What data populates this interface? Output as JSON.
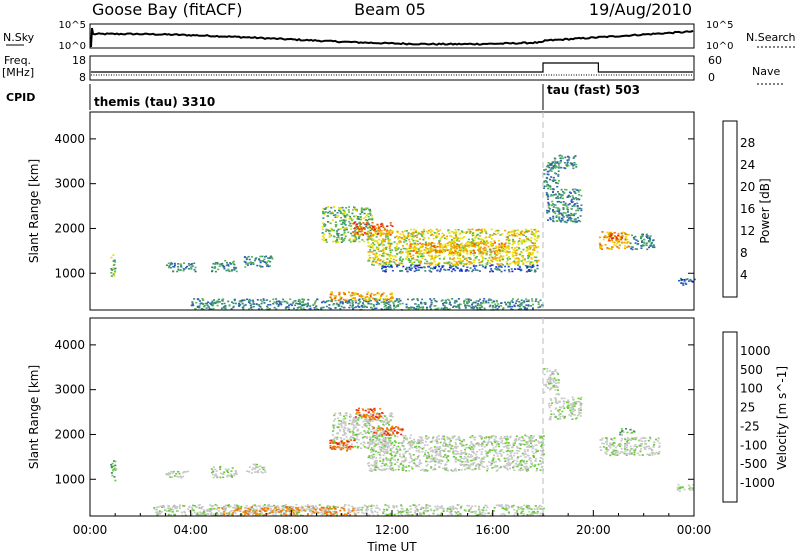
{
  "header": {
    "station": "Goose Bay (fitACF)",
    "beam": "Beam 05",
    "date": "19/Aug/2010"
  },
  "top_panels": {
    "nsky_label": "N.Sky",
    "nsky_ticks": [
      "10^5",
      "10^0"
    ],
    "nsearch_label": "N.Search",
    "nsearch_ticks": [
      "10^5",
      "10^0"
    ],
    "freq_label_1": "Freq.",
    "freq_label_2": "[MHz]",
    "freq_ticks": [
      "18",
      "8"
    ],
    "nave_label": "Nave",
    "nave_ticks": [
      "60",
      "0"
    ],
    "cpid_label": "CPID",
    "cpid_segments": [
      {
        "label": "themis (tau) 3310",
        "start_hour": 0,
        "end_hour": 18
      },
      {
        "label": "tau (fast) 503",
        "start_hour": 18,
        "end_hour": 24
      }
    ]
  },
  "chart_data": [
    {
      "type": "heatmap",
      "name": "power-panel",
      "ylabel": "Slant Range [km]",
      "ylim": [
        180,
        4600
      ],
      "yticks": [
        1000,
        2000,
        3000,
        4000
      ],
      "colorbar_label": "Power [dB]",
      "colorbar_ticks": [
        "28",
        "24",
        "20",
        "16",
        "12",
        "8",
        "4"
      ],
      "colorscale": [
        "#1a1aee",
        "#2e5cb8",
        "#3a8a78",
        "#58b858",
        "#e6e000",
        "#f0a000",
        "#ee6000",
        "#e02020"
      ],
      "regions": [
        {
          "t0": 0.8,
          "t1": 1.0,
          "r0": 950,
          "r1": 1450,
          "level": 3
        },
        {
          "t0": 3.0,
          "t1": 4.2,
          "r0": 1050,
          "r1": 1250,
          "level": 2
        },
        {
          "t0": 4.8,
          "t1": 5.8,
          "r0": 1050,
          "r1": 1300,
          "level": 2
        },
        {
          "t0": 6.1,
          "t1": 7.3,
          "r0": 1150,
          "r1": 1400,
          "level": 2
        },
        {
          "t0": 9.2,
          "t1": 11.2,
          "r0": 1700,
          "r1": 2500,
          "level": 3
        },
        {
          "t0": 10.4,
          "t1": 12.0,
          "r0": 1850,
          "r1": 2150,
          "level": 6
        },
        {
          "t0": 11.0,
          "t1": 17.8,
          "r0": 1200,
          "r1": 2000,
          "level": 4
        },
        {
          "t0": 12.5,
          "t1": 16.5,
          "r0": 1450,
          "r1": 1700,
          "level": 5
        },
        {
          "t0": 11.5,
          "t1": 17.8,
          "r0": 1050,
          "r1": 1200,
          "level": 1
        },
        {
          "t0": 4.0,
          "t1": 18.0,
          "r0": 200,
          "r1": 450,
          "level": 2
        },
        {
          "t0": 9.5,
          "t1": 12.0,
          "r0": 400,
          "r1": 600,
          "level": 5
        },
        {
          "t0": 18.0,
          "t1": 18.6,
          "r0": 2900,
          "r1": 3500,
          "level": 2
        },
        {
          "t0": 18.1,
          "t1": 19.5,
          "r0": 2150,
          "r1": 2900,
          "level": 2
        },
        {
          "t0": 18.3,
          "t1": 19.3,
          "r0": 3350,
          "r1": 3650,
          "level": 2
        },
        {
          "t0": 20.2,
          "t1": 21.4,
          "r0": 1550,
          "r1": 1950,
          "level": 5
        },
        {
          "t0": 20.6,
          "t1": 21.2,
          "r0": 1750,
          "r1": 1900,
          "level": 6
        },
        {
          "t0": 21.4,
          "t1": 22.4,
          "r0": 1550,
          "r1": 1900,
          "level": 2
        },
        {
          "t0": 23.3,
          "t1": 24.0,
          "r0": 750,
          "r1": 900,
          "level": 1
        }
      ]
    },
    {
      "type": "heatmap",
      "name": "velocity-panel",
      "ylabel": "Slant Range [km]",
      "xlabel": "Time UT",
      "ylim": [
        180,
        4600
      ],
      "yticks": [
        1000,
        2000,
        3000,
        4000
      ],
      "xticks": [
        "00:00",
        "04:00",
        "08:00",
        "12:00",
        "16:00",
        "20:00",
        "00:00"
      ],
      "colorbar_label": "Velocity [m s^-1]",
      "colorbar_ticks": [
        "1000",
        "500",
        "100",
        "25",
        "-25",
        "-100",
        "-500",
        "-1000"
      ],
      "colorscale": [
        "#1a3cc8",
        "#2e6e9a",
        "#3a8a5a",
        "#66cc33",
        "#c8c8c8",
        "#c8c8c8",
        "#ee8c10",
        "#ee6a00",
        "#e02020"
      ],
      "regions": [
        {
          "t0": 0.8,
          "t1": 1.0,
          "r0": 950,
          "r1": 1450,
          "level": 3
        },
        {
          "t0": 3.0,
          "t1": 4.0,
          "r0": 1050,
          "r1": 1200,
          "level": 4
        },
        {
          "t0": 4.8,
          "t1": 5.8,
          "r0": 1050,
          "r1": 1300,
          "level": 4
        },
        {
          "t0": 6.2,
          "t1": 7.0,
          "r0": 1150,
          "r1": 1350,
          "level": 4
        },
        {
          "t0": 9.6,
          "t1": 12.0,
          "r0": 1700,
          "r1": 2500,
          "level": 4
        },
        {
          "t0": 9.5,
          "t1": 10.5,
          "r0": 1650,
          "r1": 1900,
          "level": 7
        },
        {
          "t0": 10.5,
          "t1": 11.6,
          "r0": 2350,
          "r1": 2600,
          "level": 7
        },
        {
          "t0": 11.2,
          "t1": 12.4,
          "r0": 2000,
          "r1": 2200,
          "level": 7
        },
        {
          "t0": 11.0,
          "t1": 18.0,
          "r0": 1200,
          "r1": 2000,
          "level": 4
        },
        {
          "t0": 2.5,
          "t1": 18.0,
          "r0": 200,
          "r1": 450,
          "level": 4
        },
        {
          "t0": 5.0,
          "t1": 10.5,
          "r0": 200,
          "r1": 400,
          "level": 6
        },
        {
          "t0": 18.0,
          "t1": 18.6,
          "r0": 2900,
          "r1": 3500,
          "level": 4
        },
        {
          "t0": 18.2,
          "t1": 19.5,
          "r0": 2350,
          "r1": 2850,
          "level": 4
        },
        {
          "t0": 20.2,
          "t1": 22.6,
          "r0": 1550,
          "r1": 1950,
          "level": 4
        },
        {
          "t0": 21.0,
          "t1": 21.6,
          "r0": 2000,
          "r1": 2150,
          "level": 3
        },
        {
          "t0": 23.3,
          "t1": 24.0,
          "r0": 750,
          "r1": 900,
          "level": 4
        }
      ]
    }
  ]
}
